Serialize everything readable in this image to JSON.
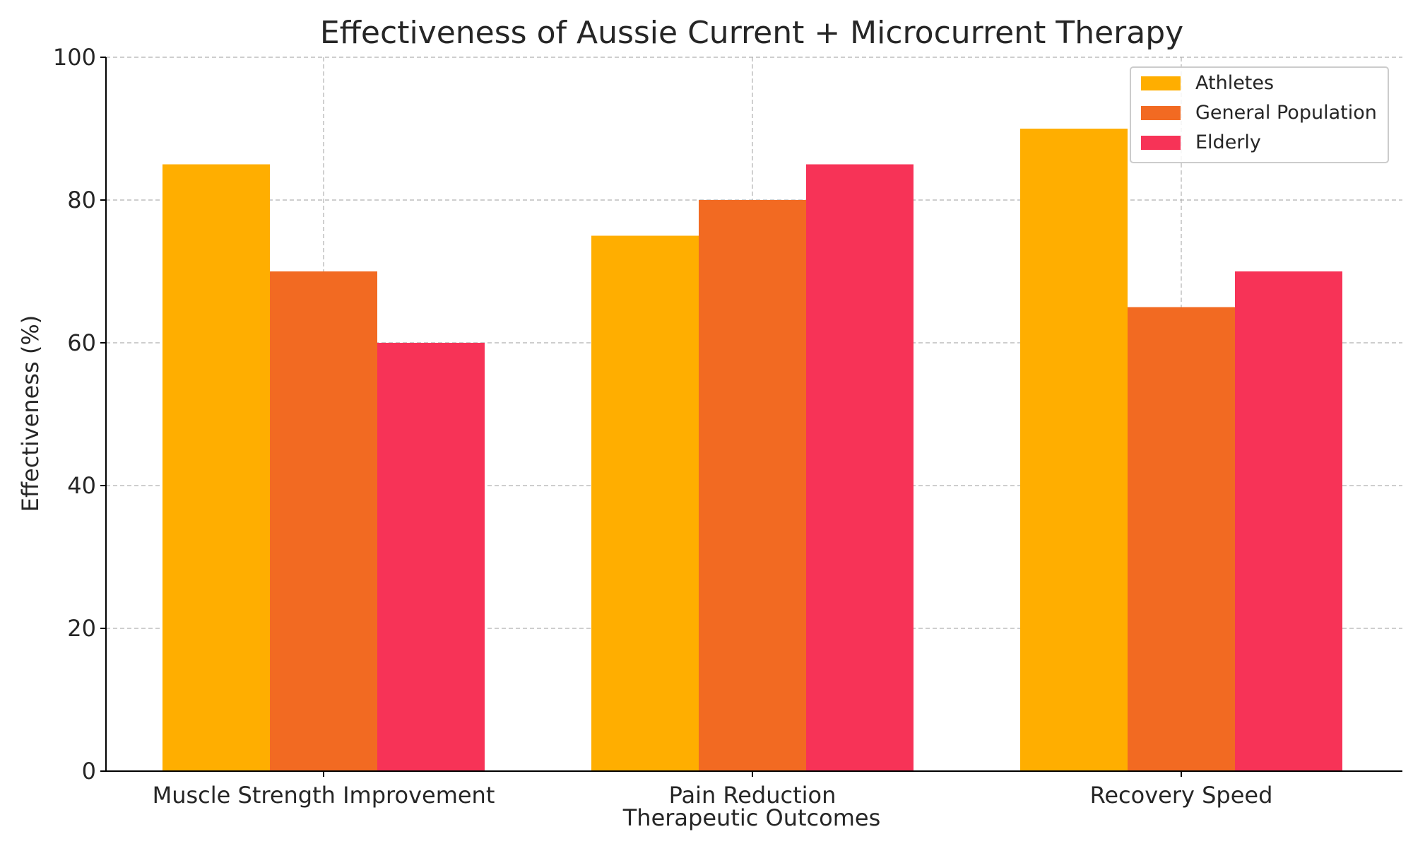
{
  "chart_data": {
    "type": "bar",
    "title": "Effectiveness of Aussie Current + Microcurrent Therapy",
    "xlabel": "Therapeutic Outcomes",
    "ylabel": "Effectiveness (%)",
    "categories": [
      "Muscle Strength Improvement",
      "Pain Reduction",
      "Recovery Speed"
    ],
    "series": [
      {
        "name": "Athletes",
        "values": [
          85,
          75,
          90
        ],
        "color": "#FFAE00"
      },
      {
        "name": "General Population",
        "values": [
          70,
          80,
          65
        ],
        "color": "#F26A22"
      },
      {
        "name": "Elderly",
        "values": [
          60,
          85,
          70
        ],
        "color": "#F73357"
      }
    ],
    "ylim": [
      0,
      100
    ],
    "yticks": [
      0,
      20,
      40,
      60,
      80,
      100
    ],
    "grid": true,
    "legend_position": "top-right"
  }
}
